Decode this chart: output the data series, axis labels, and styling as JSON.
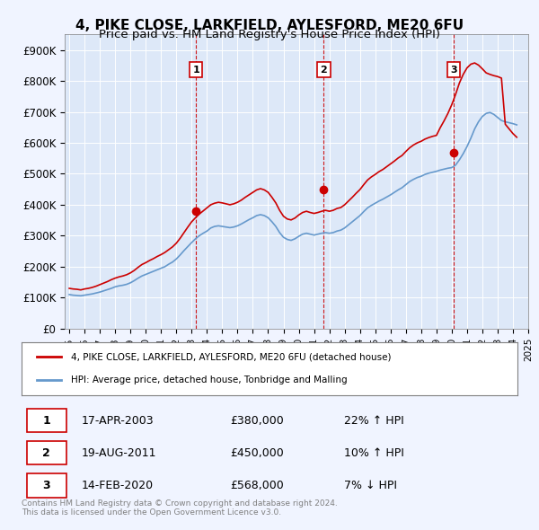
{
  "title": "4, PIKE CLOSE, LARKFIELD, AYLESFORD, ME20 6FU",
  "subtitle": "Price paid vs. HM Land Registry's House Price Index (HPI)",
  "ylabel": "",
  "ylim": [
    0,
    950000
  ],
  "yticks": [
    0,
    100000,
    200000,
    300000,
    400000,
    500000,
    600000,
    700000,
    800000,
    900000
  ],
  "ytick_labels": [
    "£0",
    "£100K",
    "£200K",
    "£300K",
    "£400K",
    "£500K",
    "£600K",
    "£700K",
    "£800K",
    "£900K"
  ],
  "background_color": "#f0f4ff",
  "plot_bg": "#dde8f8",
  "red_line_color": "#cc0000",
  "blue_line_color": "#6699cc",
  "sale_marker_color": "#cc0000",
  "vline_color": "#cc0000",
  "transactions": [
    {
      "label": "1",
      "date_str": "17-APR-2003",
      "year": 2003.29,
      "price": 380000,
      "hpi_pct": "22% ↑ HPI"
    },
    {
      "label": "2",
      "date_str": "19-AUG-2011",
      "year": 2011.63,
      "price": 450000,
      "hpi_pct": "10% ↑ HPI"
    },
    {
      "label": "3",
      "date_str": "14-FEB-2020",
      "year": 2020.12,
      "price": 568000,
      "hpi_pct": "7% ↓ HPI"
    }
  ],
  "legend_entries": [
    "4, PIKE CLOSE, LARKFIELD, AYLESFORD, ME20 6FU (detached house)",
    "HPI: Average price, detached house, Tonbridge and Malling"
  ],
  "footer": "Contains HM Land Registry data © Crown copyright and database right 2024.\nThis data is licensed under the Open Government Licence v3.0.",
  "title_fontsize": 11,
  "subtitle_fontsize": 9.5,
  "tick_fontsize": 8.5,
  "hpi_series": {
    "years": [
      1995.0,
      1995.25,
      1995.5,
      1995.75,
      1996.0,
      1996.25,
      1996.5,
      1996.75,
      1997.0,
      1997.25,
      1997.5,
      1997.75,
      1998.0,
      1998.25,
      1998.5,
      1998.75,
      1999.0,
      1999.25,
      1999.5,
      1999.75,
      2000.0,
      2000.25,
      2000.5,
      2000.75,
      2001.0,
      2001.25,
      2001.5,
      2001.75,
      2002.0,
      2002.25,
      2002.5,
      2002.75,
      2003.0,
      2003.25,
      2003.5,
      2003.75,
      2004.0,
      2004.25,
      2004.5,
      2004.75,
      2005.0,
      2005.25,
      2005.5,
      2005.75,
      2006.0,
      2006.25,
      2006.5,
      2006.75,
      2007.0,
      2007.25,
      2007.5,
      2007.75,
      2008.0,
      2008.25,
      2008.5,
      2008.75,
      2009.0,
      2009.25,
      2009.5,
      2009.75,
      2010.0,
      2010.25,
      2010.5,
      2010.75,
      2011.0,
      2011.25,
      2011.5,
      2011.75,
      2012.0,
      2012.25,
      2012.5,
      2012.75,
      2013.0,
      2013.25,
      2013.5,
      2013.75,
      2014.0,
      2014.25,
      2014.5,
      2014.75,
      2015.0,
      2015.25,
      2015.5,
      2015.75,
      2016.0,
      2016.25,
      2016.5,
      2016.75,
      2017.0,
      2017.25,
      2017.5,
      2017.75,
      2018.0,
      2018.25,
      2018.5,
      2018.75,
      2019.0,
      2019.25,
      2019.5,
      2019.75,
      2020.0,
      2020.25,
      2020.5,
      2020.75,
      2021.0,
      2021.25,
      2021.5,
      2021.75,
      2022.0,
      2022.25,
      2022.5,
      2022.75,
      2023.0,
      2023.25,
      2023.5,
      2023.75,
      2024.0,
      2024.25
    ],
    "values": [
      110000,
      108000,
      107000,
      106000,
      108000,
      110000,
      112000,
      115000,
      118000,
      122000,
      126000,
      130000,
      135000,
      138000,
      140000,
      143000,
      148000,
      155000,
      163000,
      170000,
      175000,
      180000,
      185000,
      190000,
      195000,
      200000,
      208000,
      215000,
      225000,
      238000,
      252000,
      265000,
      278000,
      290000,
      300000,
      308000,
      315000,
      325000,
      330000,
      332000,
      330000,
      328000,
      326000,
      328000,
      332000,
      338000,
      345000,
      352000,
      358000,
      365000,
      368000,
      365000,
      358000,
      345000,
      330000,
      310000,
      295000,
      288000,
      285000,
      290000,
      298000,
      305000,
      308000,
      305000,
      302000,
      305000,
      308000,
      310000,
      308000,
      310000,
      315000,
      318000,
      325000,
      335000,
      345000,
      355000,
      365000,
      378000,
      390000,
      398000,
      405000,
      412000,
      418000,
      425000,
      432000,
      440000,
      448000,
      455000,
      465000,
      475000,
      482000,
      488000,
      492000,
      498000,
      502000,
      505000,
      508000,
      512000,
      515000,
      518000,
      520000,
      528000,
      545000,
      565000,
      588000,
      615000,
      645000,
      668000,
      685000,
      695000,
      698000,
      692000,
      682000,
      672000,
      668000,
      665000,
      662000,
      658000
    ]
  },
  "property_series": {
    "years": [
      1995.0,
      1995.25,
      1995.5,
      1995.75,
      1996.0,
      1996.25,
      1996.5,
      1996.75,
      1997.0,
      1997.25,
      1997.5,
      1997.75,
      1998.0,
      1998.25,
      1998.5,
      1998.75,
      1999.0,
      1999.25,
      1999.5,
      1999.75,
      2000.0,
      2000.25,
      2000.5,
      2000.75,
      2001.0,
      2001.25,
      2001.5,
      2001.75,
      2002.0,
      2002.25,
      2002.5,
      2002.75,
      2003.0,
      2003.25,
      2003.5,
      2003.75,
      2004.0,
      2004.25,
      2004.5,
      2004.75,
      2005.0,
      2005.25,
      2005.5,
      2005.75,
      2006.0,
      2006.25,
      2006.5,
      2006.75,
      2007.0,
      2007.25,
      2007.5,
      2007.75,
      2008.0,
      2008.25,
      2008.5,
      2008.75,
      2009.0,
      2009.25,
      2009.5,
      2009.75,
      2010.0,
      2010.25,
      2010.5,
      2010.75,
      2011.0,
      2011.25,
      2011.5,
      2011.75,
      2012.0,
      2012.25,
      2012.5,
      2012.75,
      2013.0,
      2013.25,
      2013.5,
      2013.75,
      2014.0,
      2014.25,
      2014.5,
      2014.75,
      2015.0,
      2015.25,
      2015.5,
      2015.75,
      2016.0,
      2016.25,
      2016.5,
      2016.75,
      2017.0,
      2017.25,
      2017.5,
      2017.75,
      2018.0,
      2018.25,
      2018.5,
      2018.75,
      2019.0,
      2019.25,
      2019.5,
      2019.75,
      2020.0,
      2020.25,
      2020.5,
      2020.75,
      2021.0,
      2021.25,
      2021.5,
      2021.75,
      2022.0,
      2022.25,
      2022.5,
      2022.75,
      2023.0,
      2023.25,
      2023.5,
      2023.75,
      2024.0,
      2024.25
    ],
    "values": [
      130000,
      128000,
      127000,
      125000,
      128000,
      130000,
      133000,
      137000,
      142000,
      147000,
      152000,
      158000,
      163000,
      167000,
      170000,
      174000,
      180000,
      188000,
      198000,
      207000,
      213000,
      220000,
      226000,
      233000,
      239000,
      246000,
      255000,
      264000,
      276000,
      292000,
      310000,
      328000,
      345000,
      358000,
      370000,
      380000,
      390000,
      400000,
      405000,
      408000,
      406000,
      403000,
      400000,
      403000,
      408000,
      415000,
      424000,
      432000,
      440000,
      448000,
      452000,
      448000,
      440000,
      424000,
      406000,
      382000,
      363000,
      354000,
      351000,
      357000,
      367000,
      375000,
      379000,
      375000,
      372000,
      375000,
      379000,
      382000,
      379000,
      382000,
      388000,
      391000,
      400000,
      412000,
      424000,
      437000,
      449000,
      465000,
      480000,
      490000,
      498000,
      507000,
      514000,
      523000,
      532000,
      541000,
      551000,
      559000,
      572000,
      584000,
      593000,
      600000,
      605000,
      612000,
      617000,
      621000,
      624000,
      649000,
      671000,
      695000,
      723000,
      756000,
      793000,
      821000,
      842000,
      854000,
      858000,
      851000,
      839000,
      826000,
      821000,
      817000,
      814000,
      809000,
      660000,
      645000,
      630000,
      618000
    ]
  }
}
